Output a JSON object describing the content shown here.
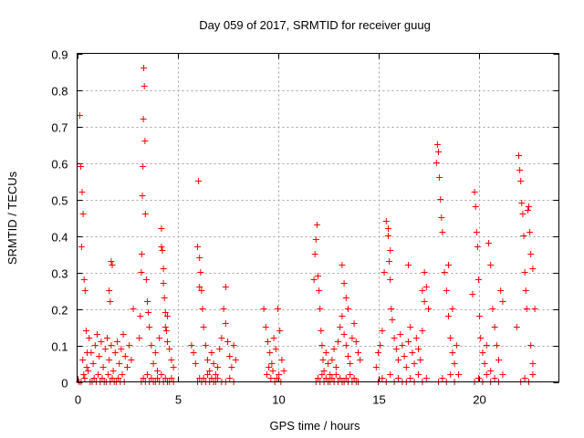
{
  "chart_data": {
    "type": "scatter",
    "title": "Day 059 of 2017, SRMTID for receiver guug",
    "xlabel": "GPS time / hours",
    "ylabel": "SRMTID / TECUs",
    "xlim": [
      0,
      24
    ],
    "ylim": [
      0,
      0.9
    ],
    "xticks": [
      0,
      5,
      10,
      15,
      20
    ],
    "xtick_labels": [
      "0",
      "5",
      "10",
      "15",
      "20"
    ],
    "yticks": [
      0,
      0.1,
      0.2,
      0.3,
      0.4,
      0.5,
      0.6,
      0.7,
      0.8,
      0.9
    ],
    "ytick_labels": [
      "0",
      "0.1",
      "0.2",
      "0.3",
      "0.4",
      "0.5",
      "0.6",
      "0.7",
      "0.8",
      "0.9"
    ],
    "grid": true,
    "marker": "+",
    "color": "#ff0000",
    "series": [
      {
        "name": "SRMTID",
        "x": [
          0.1,
          0.13,
          0.18,
          0.22,
          0.25,
          0.3,
          0.35,
          0.4,
          0.45,
          0.5,
          0.2,
          0.28,
          0.33,
          0.38,
          0.48,
          0.55,
          0.6,
          0.7,
          0.8,
          0.9,
          1.0,
          1.1,
          1.2,
          1.3,
          1.4,
          1.5,
          1.6,
          1.7,
          1.8,
          1.9,
          2.0,
          2.1,
          2.2,
          2.3,
          2.4,
          2.5,
          0.65,
          0.75,
          0.85,
          0.95,
          1.05,
          1.15,
          1.25,
          1.35,
          1.45,
          1.55,
          1.65,
          1.75,
          1.85,
          1.95,
          2.05,
          2.15,
          2.25,
          2.35,
          1.6,
          1.65,
          1.7,
          1.75,
          2.6,
          2.7,
          2.8,
          3.1,
          3.15,
          3.2,
          3.22,
          3.25,
          3.28,
          3.3,
          3.32,
          3.35,
          3.38,
          3.4,
          3.45,
          3.5,
          3.55,
          3.6,
          3.7,
          3.8,
          3.9,
          4.0,
          4.1,
          4.2,
          4.3,
          4.4,
          4.5,
          4.6,
          4.7,
          4.8,
          3.2,
          3.3,
          3.4,
          3.5,
          3.6,
          3.7,
          3.8,
          3.9,
          4.0,
          4.1,
          4.2,
          4.3,
          4.4,
          4.5,
          4.6,
          4.7,
          4.8,
          4.2,
          4.25,
          4.3,
          4.35,
          4.4,
          4.45,
          4.5,
          5.7,
          5.8,
          5.9,
          6.0,
          6.05,
          6.1,
          6.15,
          6.2,
          6.25,
          6.3,
          6.4,
          6.5,
          6.6,
          6.7,
          6.8,
          6.9,
          7.0,
          7.1,
          7.2,
          7.3,
          7.4,
          7.5,
          7.6,
          7.7,
          7.8,
          7.9,
          6.0,
          6.1,
          6.2,
          6.3,
          6.4,
          6.5,
          6.6,
          6.7,
          6.8,
          6.9,
          7.0,
          7.2,
          7.4,
          7.6,
          7.8,
          6.1,
          7.4,
          9.3,
          9.4,
          9.5,
          9.6,
          9.7,
          9.8,
          9.9,
          10.0,
          10.1,
          10.2,
          10.3,
          9.45,
          9.55,
          9.65,
          9.75,
          9.85,
          9.95,
          10.05,
          10.15,
          11.8,
          11.85,
          11.9,
          11.95,
          12.0,
          12.05,
          12.1,
          12.15,
          12.2,
          12.25,
          12.3,
          12.4,
          12.5,
          12.6,
          12.7,
          12.8,
          12.9,
          13.0,
          13.1,
          13.2,
          13.3,
          13.4,
          13.5,
          13.6,
          13.7,
          13.8,
          13.9,
          14.0,
          14.1,
          11.9,
          12.0,
          12.1,
          12.2,
          12.3,
          12.4,
          12.5,
          12.6,
          12.7,
          12.8,
          12.9,
          13.0,
          13.1,
          13.2,
          13.3,
          13.4,
          13.5,
          13.6,
          13.7,
          13.8,
          13.9,
          14.0,
          13.2,
          13.3,
          13.4,
          13.5,
          14.9,
          15.0,
          15.1,
          15.2,
          15.3,
          15.4,
          15.5,
          15.55,
          15.6,
          15.65,
          15.7,
          15.8,
          15.9,
          16.0,
          16.1,
          16.2,
          16.3,
          16.4,
          16.5,
          16.6,
          16.7,
          16.8,
          16.9,
          17.0,
          17.1,
          17.2,
          17.3,
          17.4,
          17.5,
          15.0,
          15.2,
          15.4,
          15.6,
          15.8,
          16.0,
          16.2,
          16.4,
          16.6,
          16.8,
          17.0,
          17.2,
          17.4,
          15.5,
          15.6,
          16.5,
          17.2,
          17.3,
          17.9,
          17.95,
          18.0,
          18.05,
          18.1,
          18.15,
          18.2,
          18.3,
          18.4,
          18.5,
          18.6,
          18.7,
          18.8,
          18.9,
          19.0,
          18.0,
          18.2,
          18.4,
          18.6,
          18.8,
          18.5,
          18.7,
          19.7,
          19.8,
          19.85,
          19.9,
          19.95,
          20.0,
          20.05,
          20.1,
          20.2,
          20.3,
          20.4,
          20.5,
          20.6,
          20.7,
          20.8,
          20.9,
          21.0,
          21.1,
          21.2,
          19.8,
          20.0,
          20.2,
          20.4,
          20.6,
          20.8,
          21.0,
          21.2,
          20.6,
          21.9,
          22.0,
          22.05,
          22.1,
          22.15,
          22.2,
          22.25,
          22.3,
          22.35,
          22.4,
          22.45,
          22.5,
          22.55,
          22.6,
          22.7,
          22.8,
          22.1,
          22.3,
          22.5,
          22.7,
          22.6,
          22.7
        ],
        "y": [
          0.0,
          0.73,
          0.59,
          0.37,
          0.52,
          0.46,
          0.28,
          0.25,
          0.14,
          0.08,
          0.0,
          0.06,
          0.02,
          0.01,
          0.04,
          0.03,
          0.12,
          0.08,
          0.05,
          0.1,
          0.13,
          0.07,
          0.11,
          0.04,
          0.09,
          0.12,
          0.06,
          0.1,
          0.03,
          0.08,
          0.11,
          0.05,
          0.09,
          0.13,
          0.07,
          0.04,
          0.0,
          0.0,
          0.01,
          0.0,
          0.02,
          0.0,
          0.01,
          0.0,
          0.0,
          0.02,
          0.0,
          0.01,
          0.0,
          0.0,
          0.01,
          0.0,
          0.02,
          0.0,
          0.25,
          0.22,
          0.33,
          0.32,
          0.1,
          0.06,
          0.2,
          0.12,
          0.18,
          0.3,
          0.35,
          0.51,
          0.59,
          0.72,
          0.86,
          0.81,
          0.66,
          0.46,
          0.28,
          0.22,
          0.19,
          0.15,
          0.1,
          0.05,
          0.08,
          0.03,
          0.12,
          0.37,
          0.31,
          0.15,
          0.18,
          0.09,
          0.06,
          0.04,
          0.0,
          0.01,
          0.0,
          0.02,
          0.0,
          0.01,
          0.0,
          0.0,
          0.01,
          0.0,
          0.02,
          0.0,
          0.01,
          0.0,
          0.0,
          0.01,
          0.0,
          0.42,
          0.36,
          0.27,
          0.23,
          0.19,
          0.14,
          0.11,
          0.1,
          0.08,
          0.05,
          0.37,
          0.55,
          0.34,
          0.3,
          0.25,
          0.2,
          0.15,
          0.1,
          0.06,
          0.03,
          0.08,
          0.05,
          0.02,
          0.04,
          0.09,
          0.12,
          0.2,
          0.16,
          0.11,
          0.07,
          0.04,
          0.1,
          0.06,
          0.0,
          0.01,
          0.0,
          0.01,
          0.0,
          0.02,
          0.0,
          0.01,
          0.0,
          0.0,
          0.01,
          0.0,
          0.0,
          0.01,
          0.0,
          0.26,
          0.26,
          0.2,
          0.15,
          0.11,
          0.08,
          0.05,
          0.12,
          0.09,
          0.2,
          0.14,
          0.06,
          0.03,
          0.02,
          0.04,
          0.01,
          0.03,
          0.0,
          0.01,
          0.02,
          0.0,
          0.28,
          0.35,
          0.39,
          0.43,
          0.29,
          0.25,
          0.2,
          0.14,
          0.1,
          0.06,
          0.03,
          0.08,
          0.05,
          0.02,
          0.06,
          0.09,
          0.04,
          0.11,
          0.15,
          0.18,
          0.13,
          0.1,
          0.07,
          0.05,
          0.12,
          0.16,
          0.11,
          0.08,
          0.06,
          0.0,
          0.01,
          0.0,
          0.02,
          0.0,
          0.01,
          0.0,
          0.0,
          0.01,
          0.0,
          0.02,
          0.0,
          0.01,
          0.0,
          0.0,
          0.01,
          0.0,
          0.02,
          0.0,
          0.01,
          0.0,
          0.0,
          0.32,
          0.27,
          0.23,
          0.2,
          0.04,
          0.08,
          0.1,
          0.14,
          0.3,
          0.44,
          0.42,
          0.33,
          0.28,
          0.2,
          0.17,
          0.12,
          0.09,
          0.06,
          0.13,
          0.1,
          0.07,
          0.04,
          0.11,
          0.15,
          0.08,
          0.05,
          0.12,
          0.09,
          0.06,
          0.14,
          0.3,
          0.26,
          0.2,
          0.0,
          0.01,
          0.0,
          0.02,
          0.0,
          0.01,
          0.0,
          0.0,
          0.01,
          0.0,
          0.02,
          0.0,
          0.01,
          0.4,
          0.36,
          0.32,
          0.25,
          0.22,
          0.6,
          0.65,
          0.63,
          0.56,
          0.5,
          0.45,
          0.41,
          0.3,
          0.25,
          0.18,
          0.12,
          0.08,
          0.05,
          0.1,
          0.02,
          0.0,
          0.01,
          0.0,
          0.02,
          0.0,
          0.32,
          0.2,
          0.24,
          0.52,
          0.48,
          0.41,
          0.37,
          0.28,
          0.18,
          0.12,
          0.08,
          0.05,
          0.1,
          0.38,
          0.32,
          0.2,
          0.15,
          0.1,
          0.06,
          0.25,
          0.22,
          0.0,
          0.01,
          0.0,
          0.02,
          0.0,
          0.01,
          0.0,
          0.02,
          0.03,
          0.15,
          0.62,
          0.58,
          0.55,
          0.49,
          0.46,
          0.4,
          0.3,
          0.25,
          0.2,
          0.47,
          0.48,
          0.41,
          0.35,
          0.31,
          0.2,
          0.0,
          0.01,
          0.0,
          0.02,
          0.1,
          0.05
        ]
      }
    ]
  }
}
